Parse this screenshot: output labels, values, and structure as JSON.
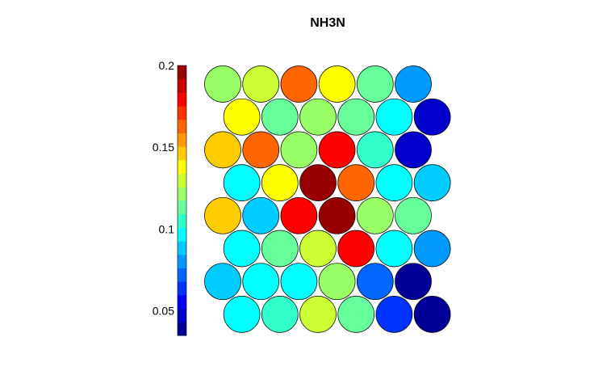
{
  "chart_data": {
    "type": "heatmap",
    "subtype": "hexagonal SOM component plane",
    "title": "NH3N",
    "grid": {
      "rows": 8,
      "cols": 6,
      "layout": "hexagonal, odd rows offset right"
    },
    "colorbar": {
      "min": 0.035,
      "max": 0.2,
      "ticks": [
        0.05,
        0.1,
        0.15,
        0.2
      ],
      "tick_labels": [
        "0.05",
        "0.1",
        "0.15",
        "0.2"
      ],
      "levels": 20,
      "colormap": "jet"
    },
    "values": [
      [
        0.125,
        0.13,
        0.16,
        0.14,
        0.115,
        0.08
      ],
      [
        0.14,
        0.115,
        0.12,
        0.11,
        0.095,
        0.05
      ],
      [
        0.145,
        0.165,
        0.12,
        0.18,
        0.105,
        0.05
      ],
      [
        0.095,
        0.14,
        0.2,
        0.16,
        0.1,
        0.085
      ],
      [
        0.145,
        0.085,
        0.18,
        0.195,
        0.12,
        0.11
      ],
      [
        0.095,
        0.11,
        0.13,
        0.18,
        0.095,
        0.08
      ],
      [
        0.085,
        0.095,
        0.095,
        0.12,
        0.075,
        0.04
      ],
      [
        0.095,
        0.105,
        0.13,
        0.115,
        0.06,
        0.04
      ]
    ]
  }
}
